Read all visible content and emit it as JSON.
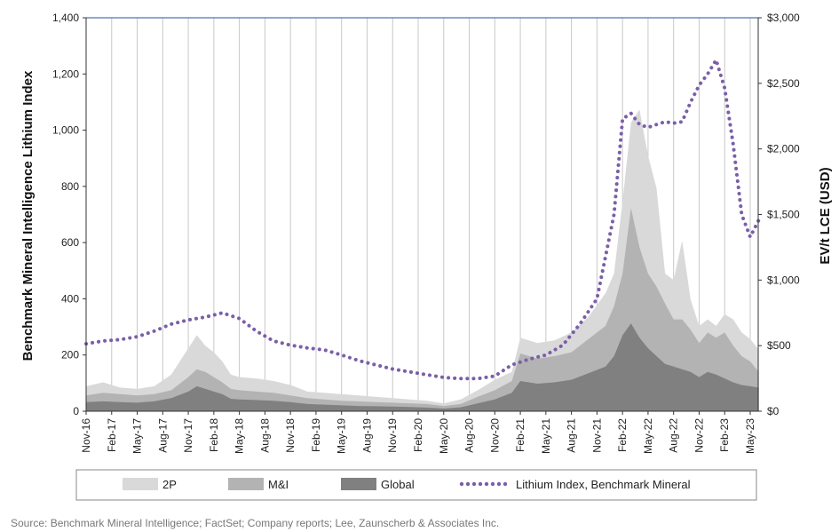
{
  "chart_data": {
    "type": "area",
    "ylabel": "Benchmark Mineral Intelligence Lithium Index",
    "y2label": "EV/t LCE (USD)",
    "ylim": [
      0,
      1400
    ],
    "y_ticks": [
      "0",
      "200",
      "400",
      "600",
      "800",
      "1,000",
      "1,200",
      "1,400"
    ],
    "y2lim": [
      0,
      3000
    ],
    "y2_ticks": [
      "$0",
      "$500",
      "$1,000",
      "$1,500",
      "$2,000",
      "$2,500",
      "$3,000"
    ],
    "x_ticks": [
      "Nov-16",
      "Feb-17",
      "May-17",
      "Aug-17",
      "Nov-17",
      "Feb-18",
      "May-18",
      "Aug-18",
      "Nov-18",
      "Feb-19",
      "May-19",
      "Aug-19",
      "Nov-19",
      "Feb-20",
      "May-20",
      "Aug-20",
      "Nov-20",
      "Feb-21",
      "May-21",
      "Aug-21",
      "Nov-21",
      "Feb-22",
      "May-22",
      "Aug-22",
      "Nov-22",
      "Feb-23",
      "May-23"
    ],
    "grid": "vertical",
    "legend_placement": "bottom",
    "series": [
      {
        "name": "2P",
        "kind": "area",
        "axis": "right",
        "color": "#d9d9d9",
        "x": [
          "2016-11",
          "2017-01",
          "2017-03",
          "2017-05",
          "2017-07",
          "2017-09",
          "2017-11",
          "2017-12",
          "2018-01",
          "2018-02",
          "2018-03",
          "2018-04",
          "2018-05",
          "2018-07",
          "2018-09",
          "2018-11",
          "2019-01",
          "2019-03",
          "2019-05",
          "2019-07",
          "2019-09",
          "2019-11",
          "2020-01",
          "2020-03",
          "2020-05",
          "2020-07",
          "2020-09",
          "2020-11",
          "2021-01",
          "2021-02",
          "2021-04",
          "2021-06",
          "2021-08",
          "2021-10",
          "2021-12",
          "2022-01",
          "2022-02",
          "2022-03",
          "2022-04",
          "2022-05",
          "2022-06",
          "2022-07",
          "2022-08",
          "2022-09",
          "2022-10",
          "2022-11",
          "2022-12",
          "2023-01",
          "2023-02",
          "2023-03",
          "2023-04",
          "2023-05",
          "2023-06"
        ],
        "values": [
          190,
          220,
          180,
          170,
          190,
          280,
          480,
          580,
          500,
          450,
          380,
          280,
          260,
          250,
          230,
          200,
          150,
          140,
          130,
          120,
          110,
          100,
          90,
          80,
          60,
          90,
          160,
          240,
          300,
          560,
          520,
          540,
          600,
          720,
          900,
          1050,
          1600,
          2200,
          2300,
          1950,
          1700,
          1050,
          1000,
          1300,
          850,
          650,
          700,
          650,
          740,
          700,
          600,
          550,
          470
        ]
      },
      {
        "name": "M&I",
        "kind": "area",
        "axis": "right",
        "color": "#b3b3b3",
        "x": [
          "2016-11",
          "2017-01",
          "2017-03",
          "2017-05",
          "2017-07",
          "2017-09",
          "2017-11",
          "2017-12",
          "2018-01",
          "2018-02",
          "2018-03",
          "2018-04",
          "2018-05",
          "2018-07",
          "2018-09",
          "2018-11",
          "2019-01",
          "2019-03",
          "2019-05",
          "2019-07",
          "2019-09",
          "2019-11",
          "2020-01",
          "2020-03",
          "2020-05",
          "2020-07",
          "2020-09",
          "2020-11",
          "2021-01",
          "2021-02",
          "2021-04",
          "2021-06",
          "2021-08",
          "2021-10",
          "2021-12",
          "2022-01",
          "2022-02",
          "2022-03",
          "2022-04",
          "2022-05",
          "2022-06",
          "2022-07",
          "2022-08",
          "2022-09",
          "2022-10",
          "2022-11",
          "2022-12",
          "2023-01",
          "2023-02",
          "2023-03",
          "2023-04",
          "2023-05",
          "2023-06"
        ],
        "values": [
          120,
          140,
          130,
          120,
          130,
          160,
          260,
          320,
          300,
          260,
          220,
          170,
          160,
          150,
          140,
          120,
          100,
          90,
          80,
          75,
          70,
          65,
          60,
          55,
          40,
          55,
          110,
          160,
          230,
          440,
          400,
          420,
          450,
          550,
          650,
          800,
          1050,
          1550,
          1250,
          1050,
          950,
          820,
          700,
          700,
          620,
          520,
          600,
          560,
          600,
          500,
          420,
          380,
          300
        ]
      },
      {
        "name": "Global",
        "kind": "area",
        "axis": "right",
        "color": "#808080",
        "x": [
          "2016-11",
          "2017-01",
          "2017-03",
          "2017-05",
          "2017-07",
          "2017-09",
          "2017-11",
          "2017-12",
          "2018-01",
          "2018-02",
          "2018-03",
          "2018-04",
          "2018-05",
          "2018-07",
          "2018-09",
          "2018-11",
          "2019-01",
          "2019-03",
          "2019-05",
          "2019-07",
          "2019-09",
          "2019-11",
          "2020-01",
          "2020-03",
          "2020-05",
          "2020-07",
          "2020-09",
          "2020-11",
          "2021-01",
          "2021-02",
          "2021-04",
          "2021-06",
          "2021-08",
          "2021-10",
          "2021-12",
          "2022-01",
          "2022-02",
          "2022-03",
          "2022-04",
          "2022-05",
          "2022-06",
          "2022-07",
          "2022-08",
          "2022-09",
          "2022-10",
          "2022-11",
          "2022-12",
          "2023-01",
          "2023-02",
          "2023-03",
          "2023-04",
          "2023-05",
          "2023-06"
        ],
        "values": [
          70,
          75,
          70,
          65,
          75,
          100,
          150,
          190,
          170,
          150,
          130,
          95,
          90,
          85,
          80,
          70,
          55,
          50,
          45,
          40,
          38,
          35,
          32,
          28,
          20,
          30,
          60,
          90,
          140,
          230,
          210,
          220,
          240,
          290,
          340,
          420,
          580,
          670,
          560,
          480,
          420,
          360,
          340,
          320,
          300,
          260,
          300,
          280,
          250,
          220,
          200,
          190,
          180
        ]
      },
      {
        "name": "Lithium Index, Benchmark Mineral",
        "kind": "line",
        "axis": "left",
        "style": "dotted",
        "color": "#7a5fa8",
        "x": [
          "2016-11",
          "2017-01",
          "2017-03",
          "2017-05",
          "2017-07",
          "2017-09",
          "2017-11",
          "2018-01",
          "2018-03",
          "2018-05",
          "2018-07",
          "2018-09",
          "2018-11",
          "2019-01",
          "2019-03",
          "2019-05",
          "2019-07",
          "2019-09",
          "2019-11",
          "2020-01",
          "2020-03",
          "2020-05",
          "2020-07",
          "2020-09",
          "2020-11",
          "2021-01",
          "2021-03",
          "2021-05",
          "2021-07",
          "2021-09",
          "2021-11",
          "2022-01",
          "2022-02",
          "2022-03",
          "2022-04",
          "2022-05",
          "2022-06",
          "2022-07",
          "2022-08",
          "2022-09",
          "2022-10",
          "2022-11",
          "2022-12",
          "2023-01",
          "2023-02",
          "2023-03",
          "2023-04",
          "2023-05",
          "2023-06"
        ],
        "values": [
          240,
          250,
          255,
          265,
          285,
          310,
          325,
          335,
          350,
          330,
          285,
          250,
          235,
          225,
          218,
          200,
          180,
          165,
          150,
          140,
          130,
          120,
          116,
          116,
          125,
          165,
          185,
          200,
          235,
          310,
          400,
          700,
          1040,
          1060,
          1020,
          1010,
          1020,
          1030,
          1025,
          1030,
          1100,
          1160,
          1200,
          1250,
          1150,
          950,
          700,
          620,
          680
        ]
      }
    ]
  },
  "legend": [
    {
      "label": "2P",
      "swatch": "#d9d9d9"
    },
    {
      "label": "M&I",
      "swatch": "#b3b3b3"
    },
    {
      "label": "Global",
      "swatch": "#808080"
    },
    {
      "label": "Lithium Index, Benchmark Mineral",
      "swatch": "#7a5fa8"
    }
  ],
  "source": "Source: Benchmark Mineral Intelligence; FactSet; Company reports; Lee, Zaunscherb & Associates Inc."
}
